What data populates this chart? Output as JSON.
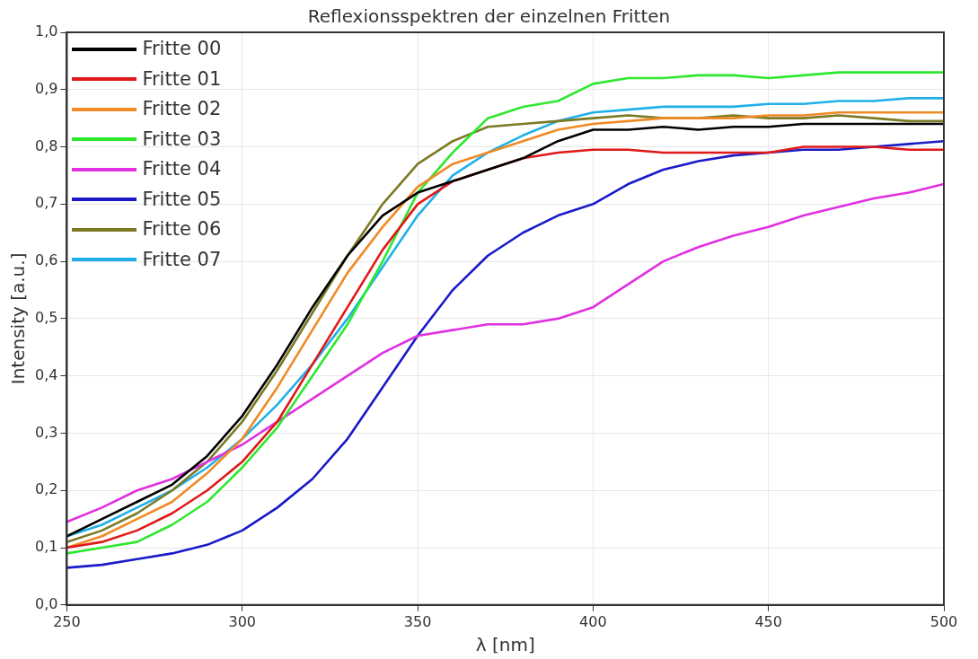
{
  "chart_data": {
    "type": "line",
    "title": "Reflexionsspektren der einzelnen Fritten",
    "xlabel": "λ [nm]",
    "ylabel": "Intensity [a.u.]",
    "x": [
      250,
      260,
      270,
      280,
      290,
      300,
      310,
      320,
      330,
      340,
      350,
      360,
      370,
      380,
      390,
      400,
      410,
      420,
      430,
      440,
      450,
      460,
      470,
      480,
      490,
      500
    ],
    "series": [
      {
        "name": "Fritte 00",
        "color": "#000000",
        "values": [
          0.12,
          0.15,
          0.18,
          0.21,
          0.26,
          0.33,
          0.42,
          0.52,
          0.61,
          0.68,
          0.72,
          0.74,
          0.76,
          0.78,
          0.81,
          0.83,
          0.83,
          0.835,
          0.83,
          0.835,
          0.835,
          0.84,
          0.84,
          0.84,
          0.84,
          0.84
        ]
      },
      {
        "name": "Fritte 01",
        "color": "#e01818",
        "values": [
          0.1,
          0.11,
          0.13,
          0.16,
          0.2,
          0.25,
          0.32,
          0.42,
          0.52,
          0.62,
          0.7,
          0.74,
          0.76,
          0.78,
          0.79,
          0.795,
          0.795,
          0.79,
          0.79,
          0.79,
          0.79,
          0.8,
          0.8,
          0.8,
          0.795,
          0.795
        ]
      },
      {
        "name": "Fritte 02",
        "color": "#f08a24",
        "values": [
          0.1,
          0.12,
          0.15,
          0.18,
          0.23,
          0.29,
          0.38,
          0.48,
          0.58,
          0.66,
          0.73,
          0.77,
          0.79,
          0.81,
          0.83,
          0.84,
          0.845,
          0.85,
          0.85,
          0.85,
          0.855,
          0.855,
          0.86,
          0.86,
          0.86,
          0.86
        ]
      },
      {
        "name": "Fritte 03",
        "color": "#2ee82e",
        "values": [
          0.09,
          0.1,
          0.11,
          0.14,
          0.18,
          0.24,
          0.31,
          0.4,
          0.49,
          0.6,
          0.72,
          0.79,
          0.85,
          0.87,
          0.88,
          0.91,
          0.92,
          0.92,
          0.925,
          0.925,
          0.92,
          0.925,
          0.93,
          0.93,
          0.93,
          0.93
        ]
      },
      {
        "name": "Fritte 04",
        "color": "#e030e0",
        "values": [
          0.145,
          0.17,
          0.2,
          0.22,
          0.25,
          0.28,
          0.32,
          0.36,
          0.4,
          0.44,
          0.47,
          0.48,
          0.49,
          0.49,
          0.5,
          0.52,
          0.56,
          0.6,
          0.625,
          0.645,
          0.66,
          0.68,
          0.695,
          0.71,
          0.72,
          0.735
        ]
      },
      {
        "name": "Fritte 05",
        "color": "#1a1ac8",
        "values": [
          0.065,
          0.07,
          0.08,
          0.09,
          0.105,
          0.13,
          0.17,
          0.22,
          0.29,
          0.38,
          0.47,
          0.55,
          0.61,
          0.65,
          0.68,
          0.7,
          0.735,
          0.76,
          0.775,
          0.785,
          0.79,
          0.795,
          0.795,
          0.8,
          0.805,
          0.81
        ]
      },
      {
        "name": "Fritte 06",
        "color": "#7a7a24",
        "values": [
          0.11,
          0.13,
          0.16,
          0.2,
          0.25,
          0.32,
          0.41,
          0.51,
          0.61,
          0.7,
          0.77,
          0.81,
          0.835,
          0.84,
          0.845,
          0.85,
          0.855,
          0.85,
          0.85,
          0.855,
          0.85,
          0.85,
          0.855,
          0.85,
          0.845,
          0.845
        ]
      },
      {
        "name": "Fritte 07",
        "color": "#20b0e8",
        "values": [
          0.12,
          0.14,
          0.17,
          0.2,
          0.24,
          0.29,
          0.35,
          0.42,
          0.5,
          0.59,
          0.68,
          0.75,
          0.79,
          0.82,
          0.845,
          0.86,
          0.865,
          0.87,
          0.87,
          0.87,
          0.875,
          0.875,
          0.88,
          0.88,
          0.885,
          0.885
        ]
      }
    ],
    "xlim": [
      250,
      500
    ],
    "xticks": [
      250,
      300,
      350,
      400,
      450,
      500
    ],
    "ylim": [
      0,
      1
    ],
    "yticks": [
      {
        "value": 0,
        "label": "0,0"
      },
      {
        "value": 0.1,
        "label": "0,1"
      },
      {
        "value": 0.2,
        "label": "0,2"
      },
      {
        "value": 0.3,
        "label": "0,3"
      },
      {
        "value": 0.4,
        "label": "0,4"
      },
      {
        "value": 0.5,
        "label": "0,5"
      },
      {
        "value": 0.6,
        "label": "0,6"
      },
      {
        "value": 0.7,
        "label": "0,7"
      },
      {
        "value": 0.8,
        "label": "0,8"
      },
      {
        "value": 0.9,
        "label": "0,9"
      },
      {
        "value": 1,
        "label": "1,0"
      }
    ],
    "grid": true,
    "legend": "top left",
    "marker": "none",
    "line_style": "solid"
  }
}
